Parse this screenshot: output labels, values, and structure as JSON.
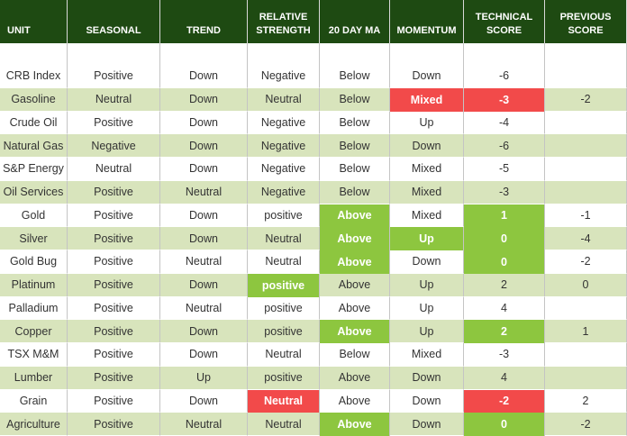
{
  "table": {
    "header": [
      "UNIT",
      "SEASONAL",
      "TREND",
      "RELATIVE STRENGTH",
      "20 DAY MA",
      "MOMENTUM",
      "TECHNICAL SCORE",
      "PREVIOUS SCORE"
    ],
    "rows": [
      [
        "CRB Index",
        "Positive",
        "Down",
        "Negative",
        "Below",
        "Down",
        -6,
        null
      ],
      [
        "Gasoline",
        "Neutral",
        "Down",
        "Neutral",
        "Below",
        "Mixed",
        -3,
        -2
      ],
      [
        "Crude Oil",
        "Positive",
        "Down",
        "Negative",
        "Below",
        "Up",
        -4,
        null
      ],
      [
        "Natural Gas",
        "Negative",
        "Down",
        "Negative",
        "Below",
        "Down",
        -6,
        null
      ],
      [
        "S&P Energy",
        "Neutral",
        "Down",
        "Negative",
        "Below",
        "Mixed",
        -5,
        null
      ],
      [
        "Oil Services",
        "Positive",
        "Neutral",
        "Negative",
        "Below",
        "Mixed",
        -3,
        null
      ],
      [
        "Gold",
        "Positive",
        "Down",
        "positive",
        "Above",
        "Mixed",
        1,
        -1
      ],
      [
        "Silver",
        "Positive",
        "Down",
        "Neutral",
        "Above",
        "Up",
        0,
        -4
      ],
      [
        "Gold Bug",
        "Positive",
        "Neutral",
        "Neutral",
        "Above",
        "Down",
        0,
        -2
      ],
      [
        "Platinum",
        "Positive",
        "Down",
        "positive",
        "Above",
        "Up",
        2,
        0
      ],
      [
        "Palladium",
        "Positive",
        "Neutral",
        "positive",
        "Above",
        "Up",
        4,
        null
      ],
      [
        "Copper",
        "Positive",
        "Down",
        "positive",
        "Above",
        "Up",
        2,
        1
      ],
      [
        "TSX M&M",
        "Positive",
        "Down",
        "Neutral",
        "Below",
        "Mixed",
        -3,
        null
      ],
      [
        "Lumber",
        "Positive",
        "Up",
        "positive",
        "Above",
        "Down",
        4,
        null
      ],
      [
        "Grain",
        "Positive",
        "Down",
        "Neutral",
        "Above",
        "Down",
        -2,
        2
      ],
      [
        "Agriculture",
        "Positive",
        "Neutral",
        "Neutral",
        "Above",
        "Down",
        0,
        -2
      ]
    ],
    "highlights": [
      [
        1,
        5,
        "#f24a4a"
      ],
      [
        1,
        6,
        "#f24a4a"
      ],
      [
        6,
        4,
        "#8dc63f"
      ],
      [
        6,
        6,
        "#8dc63f"
      ],
      [
        7,
        4,
        "#8dc63f"
      ],
      [
        7,
        5,
        "#8dc63f"
      ],
      [
        7,
        6,
        "#8dc63f"
      ],
      [
        8,
        4,
        "#8dc63f"
      ],
      [
        8,
        6,
        "#8dc63f"
      ],
      [
        9,
        3,
        "#8dc63f"
      ],
      [
        11,
        4,
        "#8dc63f"
      ],
      [
        11,
        6,
        "#8dc63f"
      ],
      [
        14,
        3,
        "#f24a4a"
      ],
      [
        14,
        6,
        "#f24a4a"
      ],
      [
        15,
        4,
        "#8dc63f"
      ],
      [
        15,
        6,
        "#8dc63f"
      ]
    ]
  }
}
